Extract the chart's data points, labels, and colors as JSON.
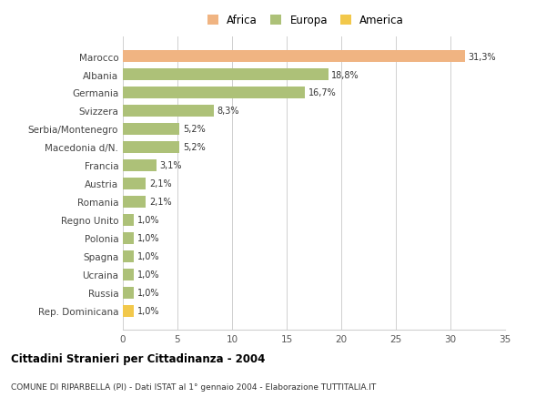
{
  "categories": [
    "Rep. Dominicana",
    "Russia",
    "Ucraina",
    "Spagna",
    "Polonia",
    "Regno Unito",
    "Romania",
    "Austria",
    "Francia",
    "Macedonia d/N.",
    "Serbia/Montenegro",
    "Svizzera",
    "Germania",
    "Albania",
    "Marocco"
  ],
  "values": [
    1.0,
    1.0,
    1.0,
    1.0,
    1.0,
    1.0,
    2.1,
    2.1,
    3.1,
    5.2,
    5.2,
    8.3,
    16.7,
    18.8,
    31.3
  ],
  "labels": [
    "1,0%",
    "1,0%",
    "1,0%",
    "1,0%",
    "1,0%",
    "1,0%",
    "2,1%",
    "2,1%",
    "3,1%",
    "5,2%",
    "5,2%",
    "8,3%",
    "16,7%",
    "18,8%",
    "31,3%"
  ],
  "colors": [
    "#f2c84b",
    "#adc178",
    "#adc178",
    "#adc178",
    "#adc178",
    "#adc178",
    "#adc178",
    "#adc178",
    "#adc178",
    "#adc178",
    "#adc178",
    "#adc178",
    "#adc178",
    "#adc178",
    "#f0b482"
  ],
  "legend_labels": [
    "Africa",
    "Europa",
    "America"
  ],
  "legend_colors": [
    "#f0b482",
    "#adc178",
    "#f2c84b"
  ],
  "title": "Cittadini Stranieri per Cittadinanza - 2004",
  "subtitle": "COMUNE DI RIPARBELLA (PI) - Dati ISTAT al 1° gennaio 2004 - Elaborazione TUTTITALIA.IT",
  "xlim": [
    0,
    35
  ],
  "xticks": [
    0,
    5,
    10,
    15,
    20,
    25,
    30,
    35
  ],
  "background_color": "#ffffff",
  "grid_color": "#d0d0d0"
}
